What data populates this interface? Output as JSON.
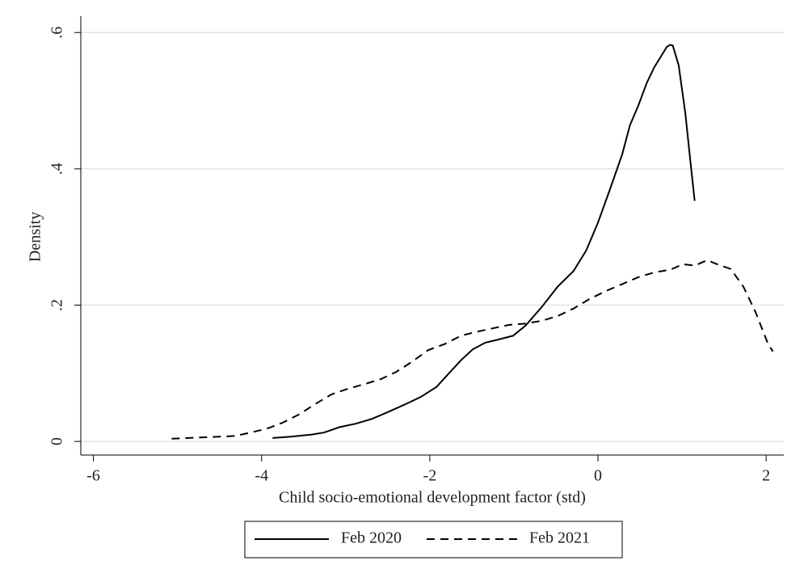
{
  "chart_data": {
    "type": "line",
    "x_label": "Child socio-emotional development factor (std)",
    "y_label": "Density",
    "xlim": [
      -6.15,
      2.21
    ],
    "ylim": [
      -0.02,
      0.624
    ],
    "xticks": [
      -6,
      -4,
      -2,
      0,
      2
    ],
    "yticks": [
      0,
      {
        "value": 0.2,
        "label": ".2"
      },
      {
        "value": 0.4,
        "label": ".4"
      },
      {
        "value": 0.6,
        "label": ".6"
      }
    ],
    "grid": true,
    "legend": "bottom",
    "series": [
      {
        "name": "Feb 2020",
        "color": "#000000",
        "dash": "solid",
        "x": [
          -3.87,
          -3.65,
          -3.41,
          -3.26,
          -3.07,
          -2.88,
          -2.69,
          -2.5,
          -2.3,
          -2.11,
          -1.92,
          -1.78,
          -1.63,
          -1.49,
          -1.34,
          -1.2,
          -1.01,
          -0.86,
          -0.67,
          -0.48,
          -0.29,
          -0.14,
          0,
          0.14,
          0.29,
          0.38,
          0.48,
          0.58,
          0.67,
          0.77,
          0.82,
          0.86,
          0.89,
          0.96,
          1.04,
          1.1,
          1.15
        ],
        "values": [
          0.005,
          0.007,
          0.01,
          0.013,
          0.021,
          0.026,
          0.033,
          0.043,
          0.054,
          0.065,
          0.08,
          0.099,
          0.119,
          0.135,
          0.145,
          0.149,
          0.155,
          0.17,
          0.197,
          0.227,
          0.25,
          0.28,
          0.321,
          0.369,
          0.422,
          0.464,
          0.493,
          0.526,
          0.549,
          0.569,
          0.579,
          0.582,
          0.581,
          0.552,
          0.481,
          0.41,
          0.353
        ]
      },
      {
        "name": "Feb 2021",
        "color": "#000000",
        "dash": "dashed",
        "x": [
          -5.07,
          -4.7,
          -4.32,
          -4.13,
          -3.93,
          -3.74,
          -3.55,
          -3.36,
          -3.17,
          -2.98,
          -2.78,
          -2.59,
          -2.4,
          -2.21,
          -2.02,
          -1.82,
          -1.63,
          -1.44,
          -1.25,
          -1.06,
          -0.86,
          -0.67,
          -0.48,
          -0.29,
          -0.1,
          0.1,
          0.29,
          0.48,
          0.67,
          0.86,
          1.01,
          1.15,
          1.3,
          1.44,
          1.58,
          1.73,
          1.87,
          2.02,
          2.08
        ],
        "values": [
          0.004,
          0.006,
          0.008,
          0.013,
          0.019,
          0.028,
          0.04,
          0.055,
          0.069,
          0.077,
          0.084,
          0.091,
          0.102,
          0.117,
          0.134,
          0.143,
          0.155,
          0.161,
          0.166,
          0.171,
          0.173,
          0.177,
          0.184,
          0.195,
          0.209,
          0.221,
          0.231,
          0.241,
          0.248,
          0.252,
          0.26,
          0.258,
          0.266,
          0.259,
          0.253,
          0.227,
          0.191,
          0.144,
          0.132
        ]
      }
    ]
  }
}
